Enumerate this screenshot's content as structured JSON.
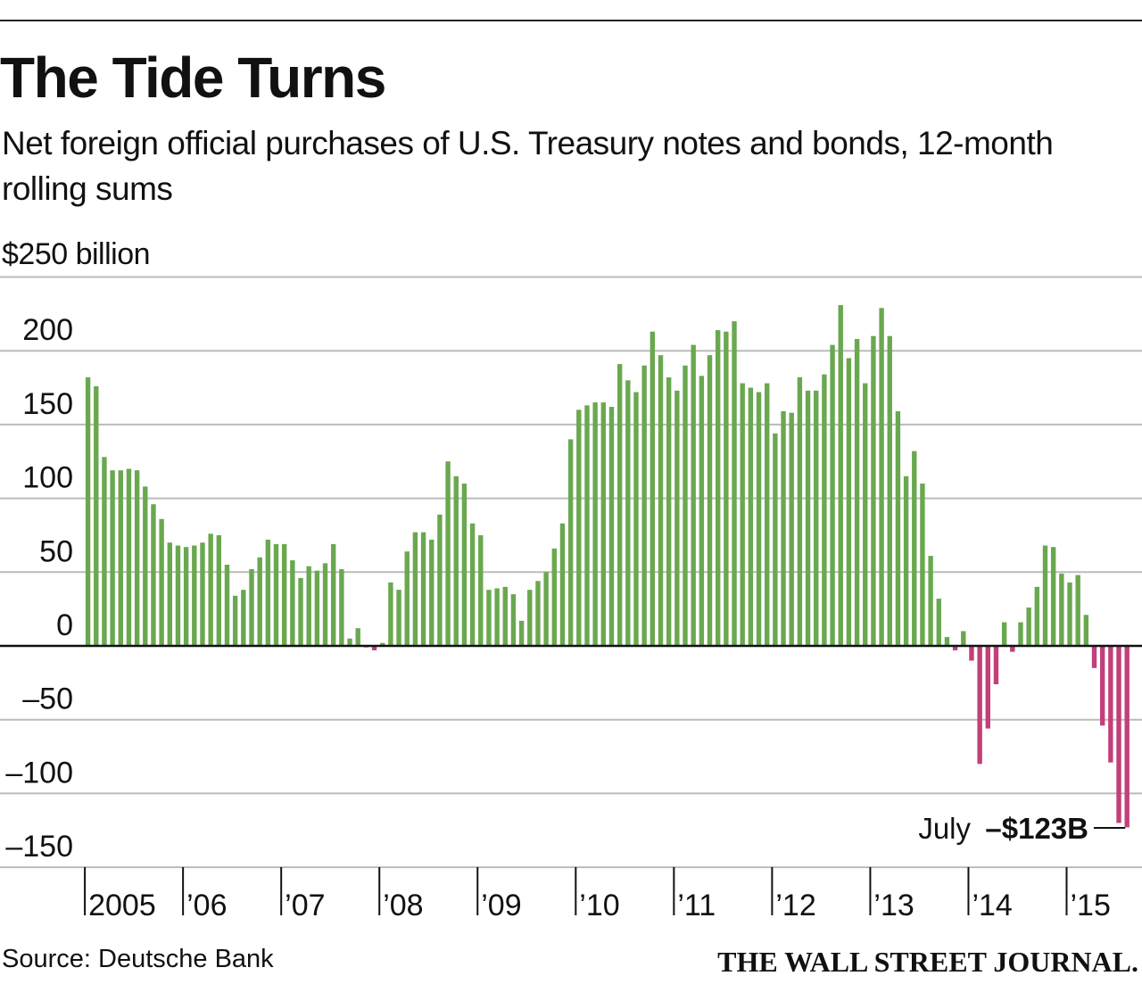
{
  "title": "The Tide Turns",
  "subtitle": "Net foreign official purchases of U.S. Treasury notes and bonds, 12-month rolling sums",
  "unit_label": "$250 billion",
  "source": "Source: Deutsche Bank",
  "brand": "THE WALL STREET JOURNAL.",
  "colors": {
    "positive": "#6aa84f",
    "negative": "#c2407a",
    "grid": "#bbbbbb",
    "axis": "#111111"
  },
  "chart_data": {
    "type": "bar",
    "title": "The Tide Turns",
    "ylabel": "$250 billion",
    "ylim": [
      -150,
      250
    ],
    "yticks": [
      200,
      150,
      100,
      50,
      0,
      -50,
      -100,
      -150
    ],
    "ytick_labels": [
      "200",
      "150",
      "100",
      "50",
      "0",
      "–50",
      "–100",
      "–150"
    ],
    "xtick_labels": [
      "2005",
      "’06",
      "’07",
      "’08",
      "’09",
      "’10",
      "’11",
      "’12",
      "’13",
      "’14",
      "’15"
    ],
    "grid": true,
    "start": "2005-01",
    "end": "2015-07",
    "values": [
      182,
      176,
      128,
      119,
      119,
      120,
      119,
      108,
      96,
      86,
      70,
      68,
      67,
      68,
      70,
      76,
      75,
      55,
      34,
      38,
      52,
      60,
      72,
      69,
      69,
      58,
      46,
      54,
      51,
      56,
      69,
      52,
      5,
      12,
      -1,
      -3,
      2,
      43,
      38,
      64,
      77,
      77,
      72,
      89,
      125,
      115,
      110,
      83,
      75,
      38,
      39,
      40,
      35,
      17,
      38,
      44,
      50,
      66,
      83,
      140,
      160,
      163,
      165,
      165,
      162,
      191,
      180,
      172,
      190,
      213,
      197,
      182,
      173,
      190,
      204,
      183,
      197,
      214,
      213,
      220,
      178,
      175,
      172,
      178,
      144,
      159,
      158,
      182,
      173,
      173,
      184,
      204,
      231,
      195,
      208,
      178,
      210,
      229,
      210,
      159,
      115,
      132,
      110,
      61,
      32,
      6,
      -3,
      10,
      -10,
      -80,
      -56,
      -26,
      16,
      -4,
      16,
      26,
      40,
      68,
      67,
      49,
      43,
      48,
      21,
      -15,
      -54,
      -79,
      -120,
      -123
    ],
    "annotation": {
      "month": "July",
      "value": "–$123B"
    }
  }
}
